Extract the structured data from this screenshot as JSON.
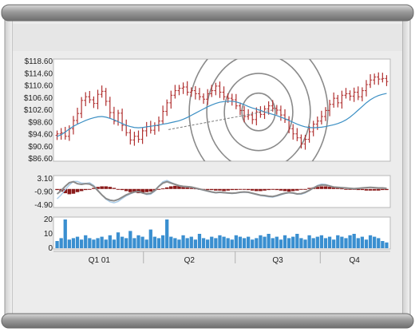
{
  "window": {
    "frame_color": "#8f8f8f",
    "panel_color": "#ececec",
    "plot_background": "#ffffff",
    "plot_border": "#b8b8b8"
  },
  "chart_data": [
    {
      "type": "ohlc",
      "name": "price",
      "y_ticks": [
        "$118.60",
        "$114.60",
        "$110.60",
        "$106.60",
        "$102.60",
        "$98.60",
        "$94.60",
        "$90.60",
        "$86.60"
      ],
      "ylim": [
        86.6,
        118.6
      ],
      "grid": false,
      "bar_color": "#b03030",
      "moving_average_color": "#3b8fc4",
      "trend_line_color": "#7a7a7a",
      "trend_line": [
        [
          0.34,
          96.2
        ],
        [
          0.66,
          102.8
        ]
      ],
      "circle_annotation": {
        "center_week": 0.61,
        "center_price": 102.0,
        "rings": 4,
        "color": "#8a8a8a"
      },
      "close": [
        94.8,
        95.2,
        94.0,
        96.5,
        99.2,
        101.5,
        105.8,
        107.0,
        106.0,
        104.8,
        107.8,
        108.8,
        105.5,
        101.8,
        99.0,
        101.6,
        97.6,
        95.2,
        92.8,
        94.0,
        93.0,
        95.8,
        97.2,
        96.0,
        97.5,
        99.0,
        102.2,
        105.0,
        107.5,
        109.0,
        109.8,
        110.2,
        108.5,
        109.0,
        108.0,
        107.0,
        106.2,
        108.0,
        109.0,
        110.5,
        108.5,
        107.0,
        106.5,
        106.0,
        104.0,
        102.5,
        100.5,
        101.0,
        99.5,
        102.0,
        101.2,
        103.0,
        104.0,
        103.2,
        102.6,
        101.0,
        99.5,
        96.5,
        94.8,
        93.5,
        91.5,
        93.0,
        95.5,
        98.0,
        99.0,
        100.5,
        102.5,
        104.5,
        106.5,
        105.0,
        107.5,
        108.0,
        107.2,
        108.5,
        107.0,
        109.0,
        111.0,
        112.5,
        113.5,
        112.8,
        113.0,
        112.0
      ],
      "moving_average": [
        94.0,
        94.5,
        95.4,
        96.4,
        97.3,
        98.0,
        98.6,
        99.2,
        99.7,
        100.1,
        100.4,
        100.5,
        100.3,
        99.9,
        99.4,
        98.8,
        98.2,
        97.6,
        97.2,
        96.9,
        96.8,
        96.9,
        97.1,
        97.3,
        97.5,
        97.7,
        98.0,
        98.2,
        98.5,
        98.8,
        99.1,
        99.6,
        100.2,
        100.9,
        101.6,
        102.3,
        103.0,
        103.7,
        104.3,
        104.8,
        105.2,
        105.4,
        105.5,
        105.5,
        105.3,
        104.9,
        104.4,
        103.8,
        103.3,
        102.9,
        102.5,
        102.0,
        101.6,
        101.2,
        100.8,
        100.3,
        99.8,
        99.2,
        98.6,
        98.0,
        97.5,
        97.1,
        96.9,
        96.8,
        96.9,
        97.0,
        97.2,
        97.5,
        97.8,
        98.2,
        98.7,
        99.4,
        100.3,
        101.4,
        102.6,
        103.8,
        105.0,
        106.0,
        106.8,
        107.4,
        107.8,
        108.1
      ]
    },
    {
      "type": "histogram",
      "name": "oscillator",
      "y_ticks": [
        "3.10",
        "-0.90",
        "-4.90"
      ],
      "ylim": [
        -4.9,
        3.1
      ],
      "histogram_color": "#8a1a1a",
      "signal_color": "#8a8a8a",
      "signal2_color": "#a8cbe8",
      "histogram": [
        -0.2,
        -0.5,
        -0.8,
        -1.0,
        -0.9,
        -0.6,
        -0.4,
        -0.2,
        0.0,
        0.2,
        0.4,
        0.5,
        0.5,
        0.4,
        0.2,
        0.0,
        -0.2,
        -0.4,
        -0.6,
        -0.7,
        -0.8,
        -0.7,
        -0.6,
        -0.5,
        -0.3,
        -0.1,
        0.1,
        0.3,
        0.5,
        0.6,
        0.6,
        0.5,
        0.4,
        0.2,
        0.1,
        0.0,
        -0.1,
        -0.2,
        -0.2,
        -0.3,
        -0.3,
        -0.4,
        -0.3,
        -0.2,
        -0.2,
        -0.1,
        -0.1,
        -0.2,
        -0.3,
        -0.4,
        -0.4,
        -0.3,
        -0.2,
        -0.1,
        -0.2,
        -0.3,
        -0.4,
        -0.5,
        -0.4,
        -0.3,
        -0.1,
        0.0,
        0.2,
        0.3,
        0.4,
        0.5,
        0.5,
        0.4,
        0.3,
        0.2,
        0.1,
        0.0,
        -0.1,
        -0.1,
        -0.2,
        -0.2,
        -0.3,
        -0.3,
        -0.3,
        -0.3,
        -0.2,
        -0.2
      ],
      "signal": [
        -1.5,
        -0.5,
        0.8,
        1.9,
        2.2,
        1.6,
        1.4,
        1.6,
        1.5,
        0.8,
        -0.5,
        -1.8,
        -2.9,
        -3.4,
        -3.6,
        -3.2,
        -2.5,
        -1.8,
        -1.3,
        -0.9,
        -0.8,
        -1.2,
        -1.5,
        -1.3,
        -0.5,
        0.8,
        1.8,
        2.2,
        1.8,
        1.4,
        1.0,
        0.8,
        0.7,
        0.6,
        0.3,
        0.0,
        -0.3,
        -0.6,
        -0.9,
        -1.1,
        -1.0,
        -1.1,
        -1.2,
        -1.3,
        -1.2,
        -1.0,
        -0.9,
        -1.0,
        -1.3,
        -1.6,
        -1.9,
        -2.0,
        -2.2,
        -2.3,
        -2.0,
        -1.6,
        -1.3,
        -1.1,
        -1.2,
        -1.5,
        -1.4,
        -1.0,
        -0.4,
        0.3,
        0.9,
        1.2,
        1.2,
        0.9,
        0.6,
        0.5,
        0.4,
        0.3,
        0.2,
        0.1,
        0.2,
        0.3,
        0.4,
        0.5,
        0.4,
        0.3,
        0.3,
        0.2
      ],
      "signal2": [
        -3.0,
        -1.8,
        -0.2,
        1.2,
        2.3,
        2.3,
        1.8,
        1.7,
        1.9,
        1.1,
        -0.3,
        -1.8,
        -3.1,
        -3.9,
        -4.2,
        -3.8,
        -2.9,
        -2.1,
        -1.5,
        -1.0,
        -0.8,
        -1.2,
        -1.7,
        -1.6,
        -0.7,
        0.9,
        2.2,
        2.6,
        2.0,
        1.4,
        0.9,
        0.7,
        0.6,
        0.5,
        0.2,
        -0.1,
        -0.4,
        -0.7,
        -1.0,
        -1.2,
        -1.1,
        -1.2,
        -1.3,
        -1.4,
        -1.3,
        -1.1,
        -1.0,
        -1.1,
        -1.4,
        -1.7,
        -2.0,
        -2.2,
        -2.4,
        -2.5,
        -2.2,
        -1.8,
        -1.4,
        -1.2,
        -1.3,
        -1.6,
        -1.6,
        -1.2,
        -0.5,
        0.3,
        1.1,
        1.5,
        1.4,
        1.0,
        0.6,
        0.5,
        0.4,
        0.3,
        0.2,
        0.1,
        0.2,
        0.3,
        0.4,
        0.5,
        0.4,
        0.3,
        0.3,
        0.2
      ]
    },
    {
      "type": "bar",
      "name": "volume",
      "y_ticks": [
        "20",
        "10",
        "0"
      ],
      "ylim": [
        0,
        20
      ],
      "bar_color": "#3a8fd0",
      "x_tick_labels": [
        "Q1 01",
        "Q2",
        "Q3",
        "Q4"
      ],
      "values": [
        5,
        7,
        20,
        6,
        7,
        8,
        6,
        9,
        7,
        6,
        7,
        8,
        6,
        9,
        6,
        11,
        8,
        7,
        12,
        7,
        9,
        8,
        6,
        13,
        8,
        7,
        9,
        20,
        8,
        7,
        6,
        9,
        7,
        8,
        6,
        10,
        7,
        6,
        8,
        7,
        9,
        8,
        7,
        6,
        9,
        8,
        7,
        8,
        6,
        7,
        9,
        8,
        10,
        7,
        8,
        6,
        9,
        7,
        8,
        10,
        7,
        6,
        9,
        7,
        8,
        9,
        7,
        8,
        6,
        9,
        8,
        7,
        9,
        10,
        7,
        8,
        6,
        9,
        8,
        7,
        5,
        4
      ]
    }
  ]
}
